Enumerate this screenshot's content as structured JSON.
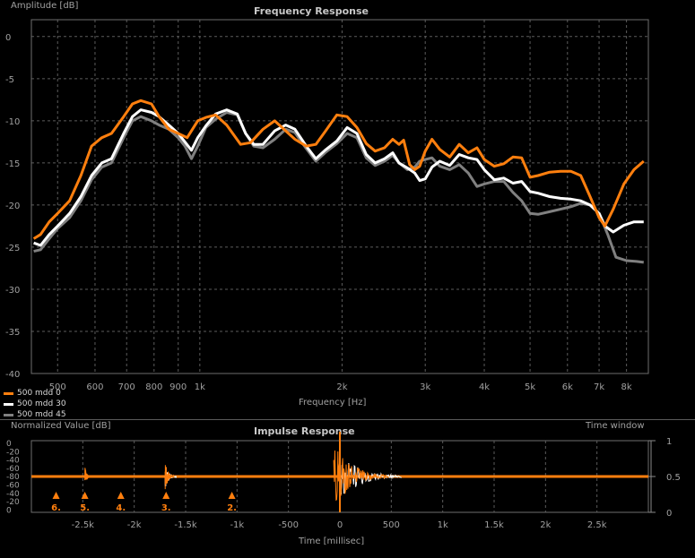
{
  "freq": {
    "title": "Frequency Response",
    "ylabel": "Amplitude [dB]",
    "xlabel": "Frequency [Hz]",
    "legend": [
      {
        "name": "500 mdd 0",
        "color": "#ff7f0e"
      },
      {
        "name": "500 mdd 30",
        "color": "#ffffff"
      },
      {
        "name": "500 mdd 45",
        "color": "#808080"
      }
    ]
  },
  "impulse": {
    "title": "Impulse Response",
    "ylabel": "Normalized Value [dB]",
    "xlabel": "Time [millisec]",
    "window_label": "Time window"
  },
  "chart_data": [
    {
      "type": "line",
      "title": "Frequency Response",
      "xlabel": "Frequency [Hz]",
      "ylabel": "Amplitude [dB]",
      "xscale": "log",
      "xlim": [
        440,
        8900
      ],
      "ylim": [
        -40,
        2
      ],
      "grid": true,
      "legend_position": "bottom-left",
      "yticks": [
        0,
        -5,
        -10,
        -15,
        -20,
        -25,
        -30,
        -35,
        -40
      ],
      "xticks": [
        {
          "v": 500,
          "label": "500"
        },
        {
          "v": 600,
          "label": "600"
        },
        {
          "v": 700,
          "label": "700"
        },
        {
          "v": 800,
          "label": "800"
        },
        {
          "v": 900,
          "label": "900"
        },
        {
          "v": 1000,
          "label": "1k"
        },
        {
          "v": 2000,
          "label": "2k"
        },
        {
          "v": 3000,
          "label": "3k"
        },
        {
          "v": 4000,
          "label": "4k"
        },
        {
          "v": 5000,
          "label": "5k"
        },
        {
          "v": 6000,
          "label": "6k"
        },
        {
          "v": 7000,
          "label": "7k"
        },
        {
          "v": 8000,
          "label": "8k"
        }
      ],
      "series": [
        {
          "name": "500 mdd 0",
          "color": "#ff7f0e",
          "points": [
            [
              445,
              -24
            ],
            [
              460,
              -23.5
            ],
            [
              480,
              -22
            ],
            [
              500,
              -21
            ],
            [
              530,
              -19.5
            ],
            [
              560,
              -16.5
            ],
            [
              590,
              -13
            ],
            [
              620,
              -12
            ],
            [
              650,
              -11.5
            ],
            [
              690,
              -9.5
            ],
            [
              720,
              -8
            ],
            [
              750,
              -7.6
            ],
            [
              790,
              -8
            ],
            [
              820,
              -9.5
            ],
            [
              860,
              -11
            ],
            [
              900,
              -11.5
            ],
            [
              940,
              -12
            ],
            [
              990,
              -10
            ],
            [
              1030,
              -9.6
            ],
            [
              1080,
              -9.3
            ],
            [
              1140,
              -10.5
            ],
            [
              1220,
              -12.8
            ],
            [
              1280,
              -12.6
            ],
            [
              1360,
              -11
            ],
            [
              1440,
              -10
            ],
            [
              1520,
              -11.2
            ],
            [
              1590,
              -12.2
            ],
            [
              1680,
              -13
            ],
            [
              1760,
              -12.8
            ],
            [
              1840,
              -11.3
            ],
            [
              1950,
              -9.3
            ],
            [
              2050,
              -9.5
            ],
            [
              2150,
              -10.8
            ],
            [
              2250,
              -12.7
            ],
            [
              2350,
              -13.6
            ],
            [
              2460,
              -13.2
            ],
            [
              2560,
              -12.2
            ],
            [
              2640,
              -12.8
            ],
            [
              2700,
              -12.3
            ],
            [
              2780,
              -15.2
            ],
            [
              2850,
              -15.8
            ],
            [
              2920,
              -15.4
            ],
            [
              3000,
              -13.6
            ],
            [
              3100,
              -12.2
            ],
            [
              3220,
              -13.4
            ],
            [
              3380,
              -14.3
            ],
            [
              3540,
              -12.8
            ],
            [
              3700,
              -13.8
            ],
            [
              3860,
              -13.2
            ],
            [
              4000,
              -14.6
            ],
            [
              4200,
              -15.4
            ],
            [
              4400,
              -15.1
            ],
            [
              4600,
              -14.3
            ],
            [
              4800,
              -14.4
            ],
            [
              5000,
              -16.7
            ],
            [
              5200,
              -16.5
            ],
            [
              5500,
              -16.1
            ],
            [
              5800,
              -16
            ],
            [
              6100,
              -16
            ],
            [
              6400,
              -16.5
            ],
            [
              6700,
              -19
            ],
            [
              7000,
              -21.5
            ],
            [
              7200,
              -22.5
            ],
            [
              7500,
              -20.5
            ],
            [
              7900,
              -17.5
            ],
            [
              8300,
              -15.8
            ],
            [
              8700,
              -14.8
            ]
          ]
        },
        {
          "name": "500 mdd 30",
          "color": "#ffffff",
          "points": [
            [
              445,
              -24.5
            ],
            [
              460,
              -24.8
            ],
            [
              480,
              -23.5
            ],
            [
              500,
              -22.5
            ],
            [
              530,
              -21
            ],
            [
              560,
              -19
            ],
            [
              590,
              -16.5
            ],
            [
              620,
              -15
            ],
            [
              650,
              -14.5
            ],
            [
              690,
              -11.5
            ],
            [
              720,
              -9.5
            ],
            [
              750,
              -8.7
            ],
            [
              790,
              -9
            ],
            [
              820,
              -9.5
            ],
            [
              860,
              -10.5
            ],
            [
              900,
              -11.5
            ],
            [
              930,
              -12.5
            ],
            [
              960,
              -13.5
            ],
            [
              990,
              -12
            ],
            [
              1030,
              -10.6
            ],
            [
              1080,
              -9.2
            ],
            [
              1140,
              -8.7
            ],
            [
              1200,
              -9.2
            ],
            [
              1250,
              -11.5
            ],
            [
              1300,
              -12.8
            ],
            [
              1360,
              -12.8
            ],
            [
              1440,
              -11.2
            ],
            [
              1520,
              -10.5
            ],
            [
              1590,
              -11
            ],
            [
              1680,
              -13
            ],
            [
              1760,
              -14.5
            ],
            [
              1840,
              -13.5
            ],
            [
              1950,
              -12.4
            ],
            [
              2050,
              -10.8
            ],
            [
              2150,
              -11.5
            ],
            [
              2250,
              -14
            ],
            [
              2350,
              -15
            ],
            [
              2460,
              -14.5
            ],
            [
              2560,
              -13.8
            ],
            [
              2640,
              -15
            ],
            [
              2750,
              -15.6
            ],
            [
              2850,
              -16.2
            ],
            [
              2920,
              -17.1
            ],
            [
              3000,
              -16.9
            ],
            [
              3100,
              -15.5
            ],
            [
              3220,
              -14.8
            ],
            [
              3380,
              -15.3
            ],
            [
              3540,
              -14
            ],
            [
              3700,
              -14.4
            ],
            [
              3860,
              -14.6
            ],
            [
              4000,
              -15.8
            ],
            [
              4200,
              -17
            ],
            [
              4400,
              -16.8
            ],
            [
              4600,
              -17.4
            ],
            [
              4800,
              -17.2
            ],
            [
              5000,
              -18.4
            ],
            [
              5200,
              -18.6
            ],
            [
              5500,
              -19
            ],
            [
              5800,
              -19.2
            ],
            [
              6100,
              -19.3
            ],
            [
              6400,
              -19.5
            ],
            [
              6700,
              -20
            ],
            [
              7000,
              -21
            ],
            [
              7200,
              -22.5
            ],
            [
              7500,
              -23.2
            ],
            [
              7900,
              -22.4
            ],
            [
              8300,
              -22
            ],
            [
              8700,
              -22
            ]
          ]
        },
        {
          "name": "500 mdd 45",
          "color": "#808080",
          "points": [
            [
              445,
              -25.5
            ],
            [
              460,
              -25.3
            ],
            [
              480,
              -24
            ],
            [
              500,
              -22.8
            ],
            [
              530,
              -21.5
            ],
            [
              560,
              -19.5
            ],
            [
              590,
              -17
            ],
            [
              620,
              -15.5
            ],
            [
              650,
              -15
            ],
            [
              690,
              -12
            ],
            [
              720,
              -10
            ],
            [
              750,
              -9.5
            ],
            [
              790,
              -10
            ],
            [
              820,
              -10.5
            ],
            [
              860,
              -11
            ],
            [
              900,
              -12
            ],
            [
              930,
              -13
            ],
            [
              960,
              -14.5
            ],
            [
              990,
              -13
            ],
            [
              1030,
              -10.8
            ],
            [
              1080,
              -9.8
            ],
            [
              1140,
              -9
            ],
            [
              1200,
              -9.3
            ],
            [
              1250,
              -11.5
            ],
            [
              1300,
              -13
            ],
            [
              1360,
              -13.2
            ],
            [
              1440,
              -12.2
            ],
            [
              1520,
              -11
            ],
            [
              1590,
              -11.4
            ],
            [
              1680,
              -13.3
            ],
            [
              1760,
              -14.8
            ],
            [
              1840,
              -13.8
            ],
            [
              1950,
              -12.7
            ],
            [
              2050,
              -11.5
            ],
            [
              2150,
              -12
            ],
            [
              2250,
              -14.4
            ],
            [
              2350,
              -15.3
            ],
            [
              2460,
              -14.8
            ],
            [
              2560,
              -14.1
            ],
            [
              2640,
              -15
            ],
            [
              2750,
              -15.8
            ],
            [
              2850,
              -15.5
            ],
            [
              2920,
              -14.8
            ],
            [
              3000,
              -14.6
            ],
            [
              3100,
              -14.4
            ],
            [
              3220,
              -15.4
            ],
            [
              3380,
              -15.8
            ],
            [
              3540,
              -15.2
            ],
            [
              3700,
              -16.2
            ],
            [
              3860,
              -17.8
            ],
            [
              4000,
              -17.5
            ],
            [
              4200,
              -17.2
            ],
            [
              4400,
              -17.2
            ],
            [
              4600,
              -18.5
            ],
            [
              4800,
              -19.5
            ],
            [
              5000,
              -21
            ],
            [
              5200,
              -21.1
            ],
            [
              5500,
              -20.8
            ],
            [
              5800,
              -20.5
            ],
            [
              6100,
              -20.2
            ],
            [
              6400,
              -19.8
            ],
            [
              6700,
              -20
            ],
            [
              7000,
              -21
            ],
            [
              7300,
              -23.5
            ],
            [
              7600,
              -26.2
            ],
            [
              8000,
              -26.6
            ],
            [
              8400,
              -26.7
            ],
            [
              8700,
              -26.8
            ]
          ]
        }
      ]
    },
    {
      "type": "line",
      "title": "Impulse Response",
      "xlabel": "Time [millisec]",
      "ylabel": "Normalized Value [dB]",
      "xlim": [
        -3000,
        3000
      ],
      "ylim": [
        0,
        1
      ],
      "grid": true,
      "xticks": [
        {
          "v": -2500,
          "label": "-2.5k"
        },
        {
          "v": -2000,
          "label": "-2k"
        },
        {
          "v": -1500,
          "label": "-1.5k"
        },
        {
          "v": -1000,
          "label": "-1k"
        },
        {
          "v": -500,
          "label": "-500"
        },
        {
          "v": 0,
          "label": "0"
        },
        {
          "v": 500,
          "label": "500"
        },
        {
          "v": 1000,
          "label": "1k"
        },
        {
          "v": 1500,
          "label": "1.5k"
        },
        {
          "v": 2000,
          "label": "2k"
        },
        {
          "v": 2500,
          "label": "2.5k"
        }
      ],
      "y_left_labels": [
        "0",
        "-20",
        "-40",
        "-60",
        "-80",
        "-60",
        "-40",
        "-20",
        "0"
      ],
      "y_right_labels": [
        "1",
        "0.5",
        "0"
      ],
      "window_level": 0.5,
      "markers": [
        {
          "label": "6.",
          "t": -2760
        },
        {
          "label": "5.",
          "t": -2480
        },
        {
          "label": "4.",
          "t": -2130
        },
        {
          "label": "3.",
          "t": -1690
        },
        {
          "label": "2.",
          "t": -1050
        }
      ]
    }
  ]
}
